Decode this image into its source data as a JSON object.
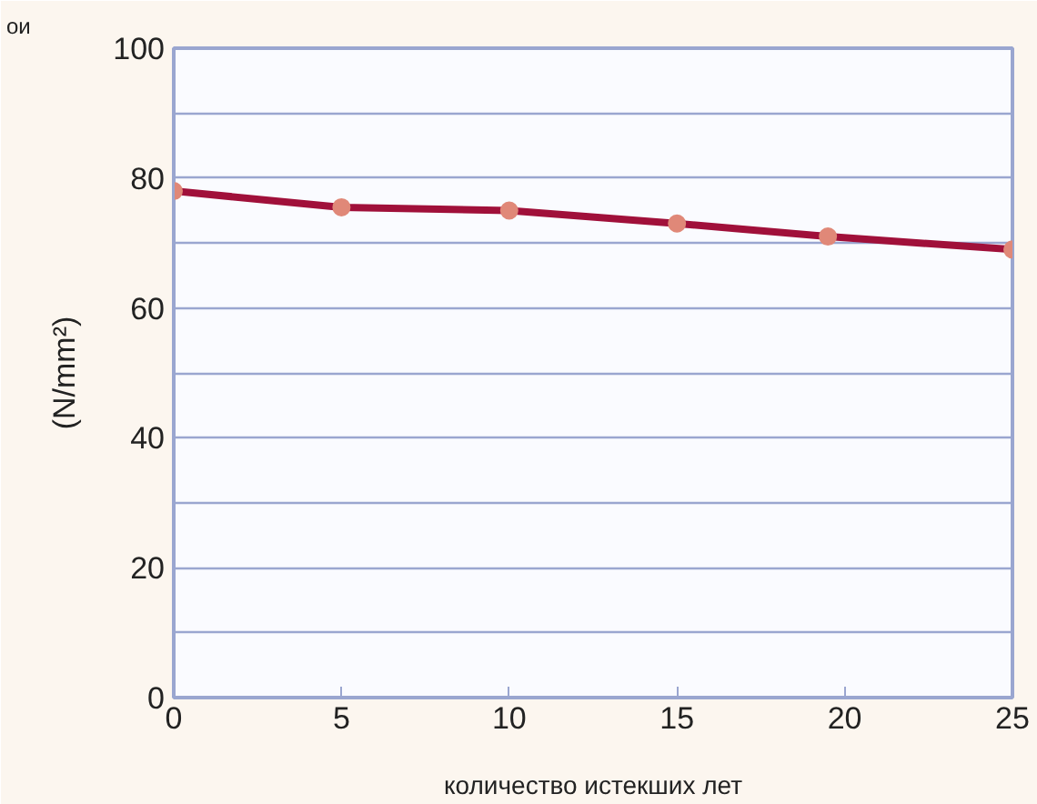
{
  "chart_data": {
    "type": "line",
    "xlabel": "количество истекших лет",
    "ylabel": "(N/mm²)",
    "annotations": [
      "ои"
    ],
    "x": [
      0,
      5,
      10,
      15,
      19.5,
      25
    ],
    "series": [
      {
        "color": "#a0103a",
        "values": [
          78,
          75.5,
          75,
          73,
          71,
          69
        ]
      }
    ],
    "xlim": [
      0,
      25
    ],
    "xticks": [
      0,
      5,
      10,
      15,
      20,
      25
    ],
    "ylim": [
      0,
      100
    ],
    "yticks": [
      0,
      {
        "value": 10,
        "label": null
      },
      20,
      {
        "value": 30,
        "label": null
      },
      40,
      {
        "value": 50,
        "label": null
      },
      60,
      {
        "value": 70,
        "label": null
      },
      80,
      {
        "value": 90,
        "label": null
      },
      100
    ],
    "grid": "y",
    "marker": "circle",
    "line_style": "solid"
  }
}
